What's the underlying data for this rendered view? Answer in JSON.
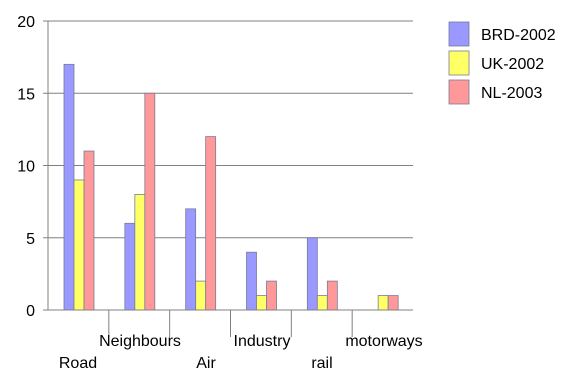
{
  "chart_data": {
    "type": "bar",
    "title": "",
    "xlabel": "",
    "ylabel": "",
    "categories": [
      "Road",
      "Neighbours",
      "Air",
      "Industry",
      "rail",
      "motorways"
    ],
    "series": [
      {
        "name": "BRD-2002",
        "values": [
          17,
          6,
          7,
          4,
          5,
          0
        ],
        "color": "#9999ff"
      },
      {
        "name": "UK-2002",
        "values": [
          9,
          8,
          2,
          1,
          1,
          1
        ],
        "color": "#ffff66"
      },
      {
        "name": "NL-2003",
        "values": [
          11,
          15,
          12,
          2,
          2,
          1
        ],
        "color": "#ff9999"
      }
    ],
    "ylim": [
      0,
      20
    ],
    "yticks": [
      "0",
      "5",
      "10",
      "15",
      "20"
    ],
    "grid": true,
    "legend_position": "top-right"
  }
}
